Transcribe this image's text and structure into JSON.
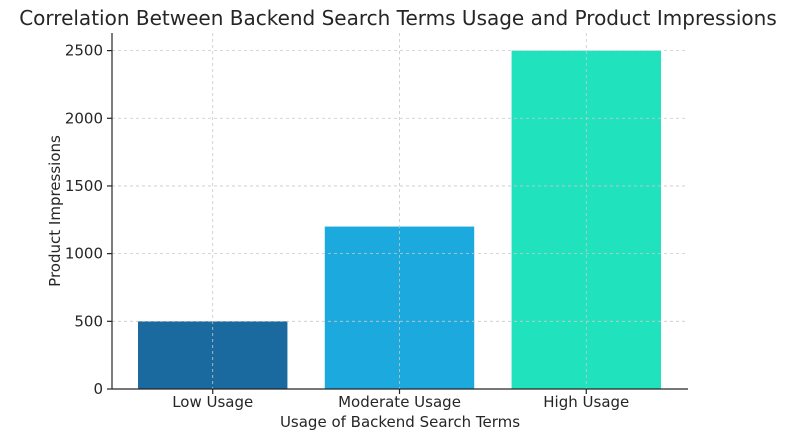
{
  "chart_data": {
    "type": "bar",
    "title": "Correlation Between Backend Search Terms Usage and Product Impressions",
    "xlabel": "Usage of Backend Search Terms",
    "ylabel": "Product Impressions",
    "categories": [
      "Low Usage",
      "Moderate Usage",
      "High Usage"
    ],
    "values": [
      500,
      1200,
      2500
    ],
    "colors": [
      "#1a6aa0",
      "#1ca9de",
      "#20e3bd"
    ],
    "ylim": [
      0,
      2630
    ],
    "yticks": [
      0,
      500,
      1000,
      1500,
      2000,
      2500
    ],
    "grid": true,
    "legend": false
  }
}
